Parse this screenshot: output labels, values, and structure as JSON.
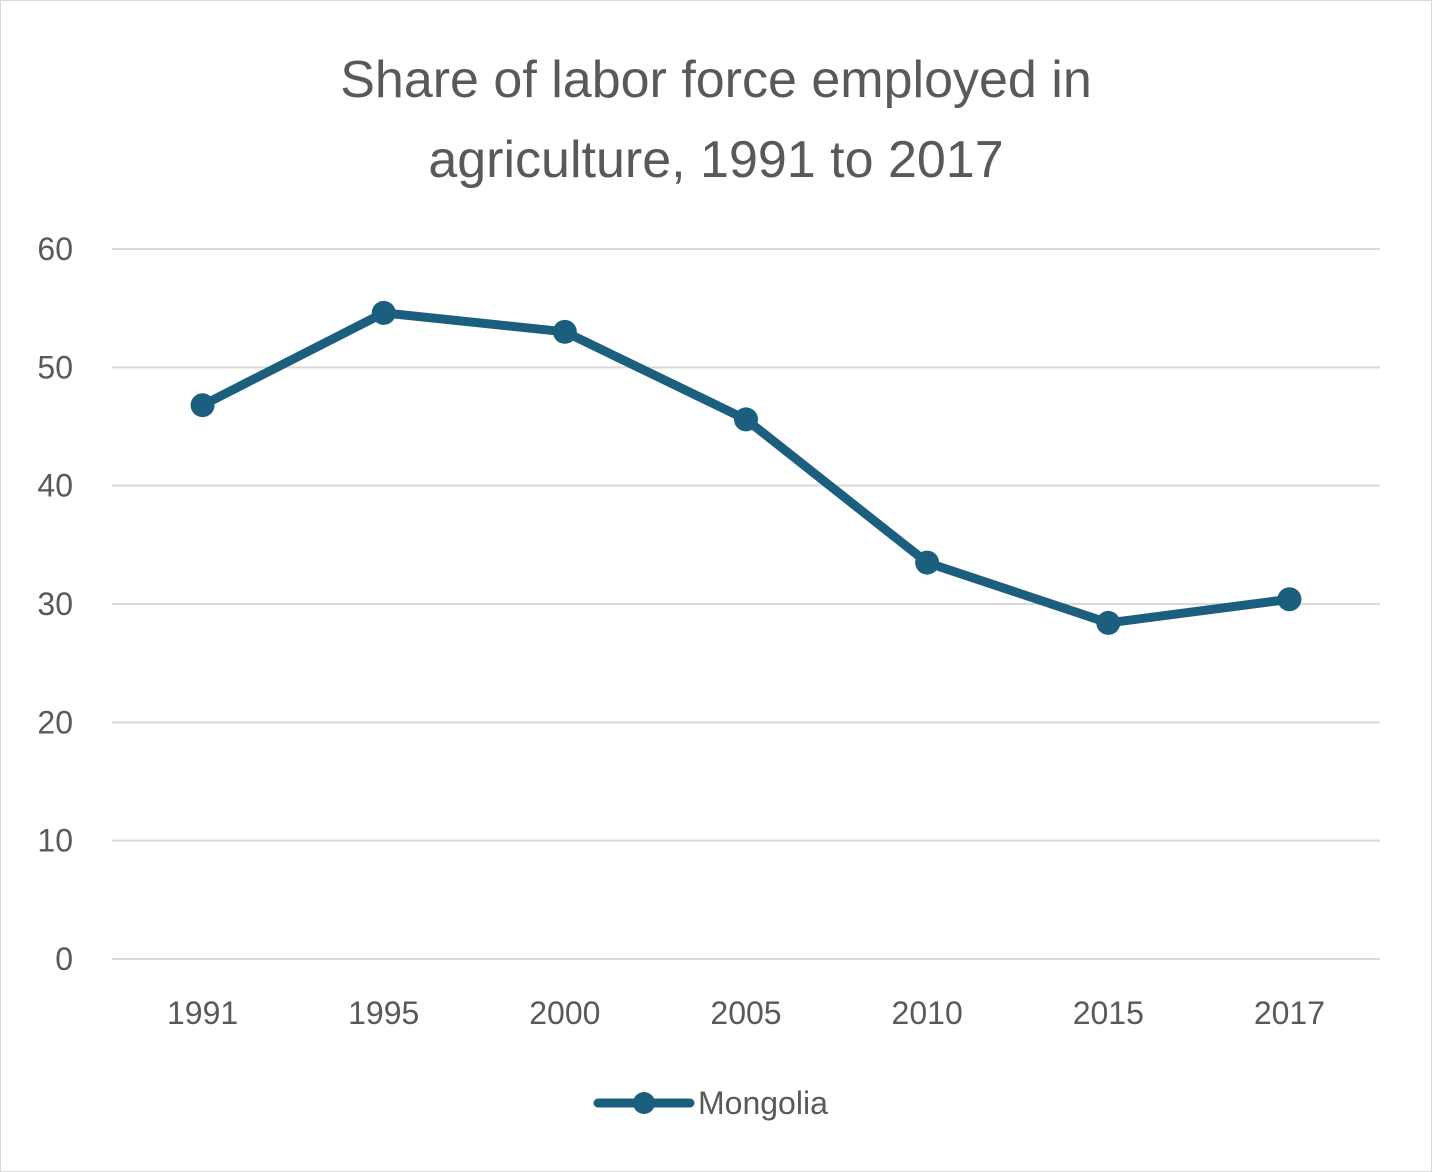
{
  "chart_data": {
    "type": "line",
    "title_lines": [
      "Share of labor force employed in",
      "agriculture, 1991 to 2017"
    ],
    "categories": [
      "1991",
      "1995",
      "2000",
      "2005",
      "2010",
      "2015",
      "2017"
    ],
    "series": [
      {
        "name": "Mongolia",
        "color": "#1b5e7e",
        "values": [
          46.8,
          54.6,
          53.0,
          45.6,
          33.5,
          28.4,
          30.4
        ]
      }
    ],
    "y_ticks": [
      "0",
      "10",
      "20",
      "30",
      "40",
      "50",
      "60"
    ],
    "ylim": [
      0,
      60
    ],
    "grid": true,
    "legend_position": "bottom"
  }
}
